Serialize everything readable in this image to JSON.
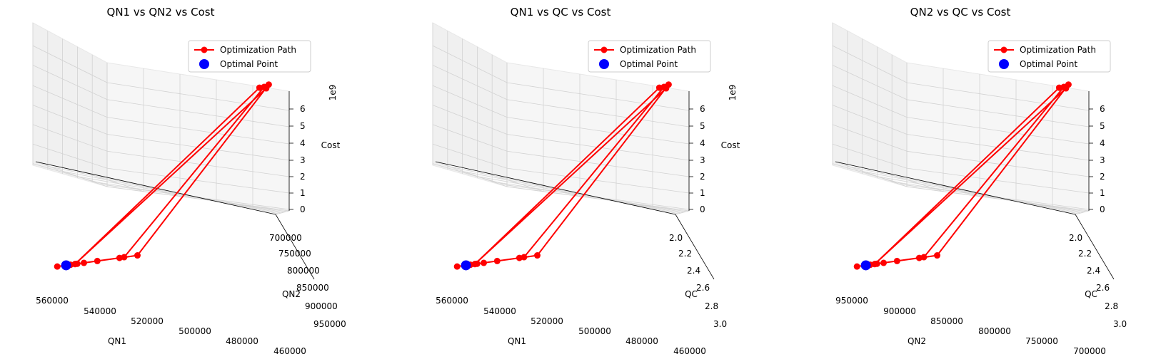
{
  "colors": {
    "path": "#ff0000",
    "optimal": "#0000ff",
    "pane_left": "#f0f0f0",
    "pane_right": "#f6f6f6",
    "pane_floor": "#fafafa",
    "grid": "#d2d2d2"
  },
  "legend": {
    "path_label": "Optimization Path",
    "optimal_label": "Optimal Point",
    "placement": "top-right"
  },
  "chart_data": [
    {
      "type": "scatter3d-line",
      "title": "QN1 vs QN2 vs Cost",
      "xlabel": "QN1",
      "ylabel": "QN2",
      "zlabel": "Cost",
      "z_multiplier": "1e9",
      "x_ticks": [
        "560000",
        "540000",
        "520000",
        "500000",
        "480000",
        "460000"
      ],
      "y_ticks": [
        "700000",
        "750000",
        "800000",
        "850000",
        "900000",
        "950000"
      ],
      "z_ticks": [
        "0",
        "1",
        "2",
        "3",
        "4",
        "5",
        "6"
      ],
      "legend": [
        "Optimization Path",
        "Optimal Point"
      ]
    },
    {
      "type": "scatter3d-line",
      "title": "QN1 vs QC vs Cost",
      "xlabel": "QN1",
      "ylabel": "QC",
      "zlabel": "Cost",
      "z_multiplier": "1e9",
      "x_ticks": [
        "560000",
        "540000",
        "520000",
        "500000",
        "480000",
        "460000"
      ],
      "y_ticks": [
        "2.0",
        "2.2",
        "2.4",
        "2.6",
        "2.8",
        "3.0"
      ],
      "z_ticks": [
        "0",
        "1",
        "2",
        "3",
        "4",
        "5",
        "6"
      ],
      "legend": [
        "Optimization Path",
        "Optimal Point"
      ]
    },
    {
      "type": "scatter3d-line",
      "title": "QN2 vs QC vs Cost",
      "xlabel": "QN2",
      "ylabel": "QC",
      "zlabel": "",
      "z_multiplier": "",
      "x_ticks": [
        "950000",
        "900000",
        "850000",
        "800000",
        "750000",
        "700000"
      ],
      "y_ticks": [
        "2.0",
        "2.2",
        "2.4",
        "2.6",
        "2.8",
        "3.0"
      ],
      "z_ticks": [
        "0",
        "1",
        "2",
        "3",
        "4",
        "5",
        "6"
      ],
      "legend": [
        "Optimization Path",
        "Optimal Point"
      ]
    }
  ]
}
